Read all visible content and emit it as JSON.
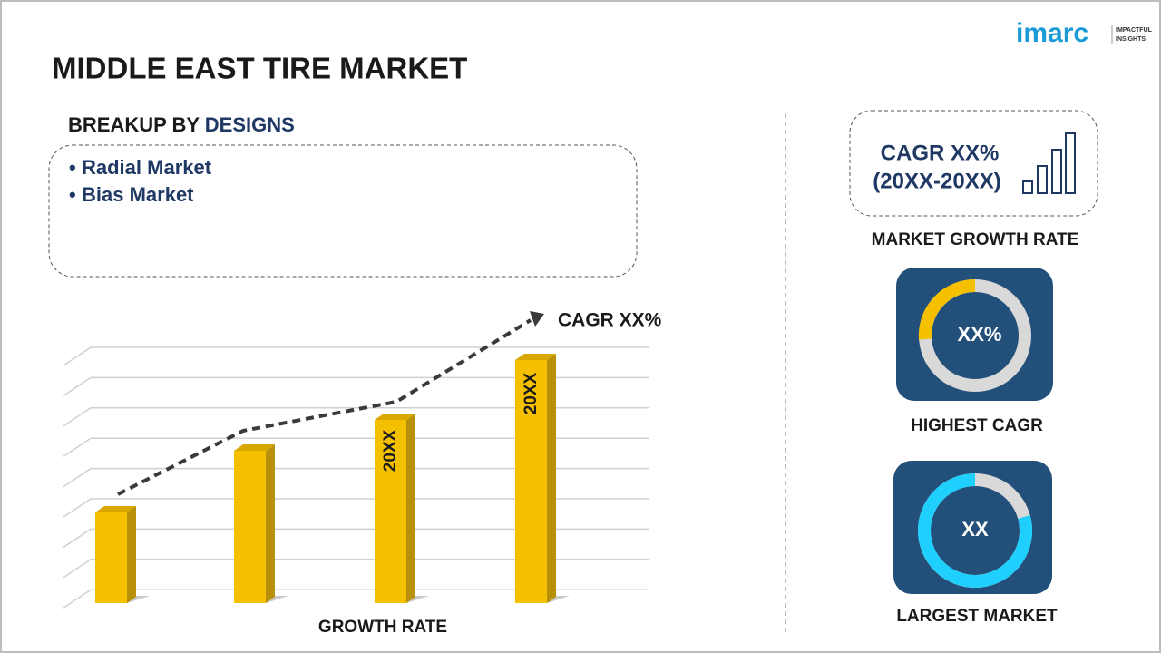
{
  "header": {
    "title": "MIDDLE EAST TIRE MARKET",
    "logo": {
      "brand": "imarc",
      "tagline_1": "IMPACTFUL",
      "tagline_2": "INSIGHTS"
    }
  },
  "breakup": {
    "label": "BREAKUP BY",
    "dimension": "DESIGNS",
    "items": [
      "Radial Market",
      "Bias Market"
    ]
  },
  "growth_chart": {
    "trend_label": "CAGR XX%",
    "bar_labels": [
      "20XX",
      "20XX"
    ],
    "axis_label": "GROWTH RATE"
  },
  "cards": [
    {
      "value": "CAGR XX%",
      "period": "(20XX-20XX)",
      "caption": "MARKET GROWTH RATE"
    },
    {
      "value": "XX%",
      "caption": "HIGHEST CAGR"
    },
    {
      "value": "XX",
      "caption": "LARGEST MARKET"
    }
  ]
}
